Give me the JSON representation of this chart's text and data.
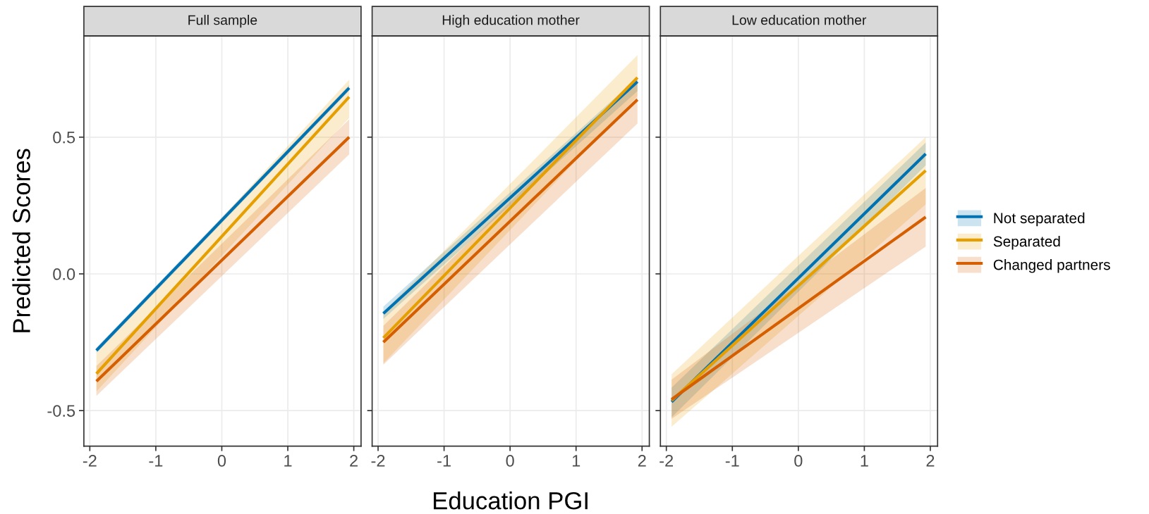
{
  "chart_data": [
    {
      "type": "line",
      "title": "Full sample",
      "ylabel": "Predicted Scores",
      "x": [
        -1.9,
        1.93
      ],
      "xlim": [
        -2.09,
        2.11
      ],
      "ylim": [
        -0.63,
        0.87
      ],
      "xticks": [
        -2,
        -1,
        0,
        1,
        2
      ],
      "yticks": [
        {
          "value": -0.5,
          "label": "-0.5"
        },
        {
          "value": 0,
          "label": "0.0"
        },
        {
          "value": 0.5,
          "label": "0.5"
        }
      ],
      "grid": true,
      "legend": "right",
      "series": [
        {
          "name": "Not separated",
          "color": "#0072b2",
          "values": [
            -0.28,
            0.68
          ],
          "lower": [
            -0.29,
            0.67
          ],
          "upper": [
            -0.27,
            0.69
          ]
        },
        {
          "name": "Separated",
          "color": "#e69f00",
          "values": [
            -0.365,
            0.647
          ],
          "lower": [
            -0.43,
            0.57
          ],
          "upper": [
            -0.29,
            0.71
          ]
        },
        {
          "name": "Changed partners",
          "color": "#d55e00",
          "values": [
            -0.393,
            0.5
          ],
          "lower": [
            -0.446,
            0.437
          ],
          "upper": [
            -0.337,
            0.565
          ]
        }
      ]
    },
    {
      "type": "line",
      "title": "High education mother",
      "xlabel": "Education PGI",
      "x": [
        -1.92,
        1.93
      ],
      "xlim": [
        -2.09,
        2.11
      ],
      "ylim": [
        -0.63,
        0.87
      ],
      "xticks": [
        -2,
        -1,
        0,
        1,
        2
      ],
      "yticks": [
        -0.5,
        0.0,
        0.5
      ],
      "grid": true,
      "tick_labels": "x",
      "series": [
        {
          "color": "#0072b2",
          "values": [
            -0.145,
            0.703
          ],
          "lower": [
            -0.165,
            0.668
          ],
          "upper": [
            -0.12,
            0.718
          ]
        },
        {
          "color": "#e69f00",
          "values": [
            -0.234,
            0.718
          ],
          "lower": [
            -0.327,
            0.65
          ],
          "upper": [
            -0.14,
            0.8
          ]
        },
        {
          "color": "#d55e00",
          "values": [
            -0.25,
            0.637
          ],
          "lower": [
            -0.332,
            0.55
          ],
          "upper": [
            -0.19,
            0.718
          ]
        }
      ]
    },
    {
      "type": "line",
      "title": "Low education mother",
      "x": [
        -1.92,
        1.93
      ],
      "xlim": [
        -2.09,
        2.11
      ],
      "ylim": [
        -0.63,
        0.87
      ],
      "xticks": [
        -2,
        -1,
        0,
        1,
        2
      ],
      "yticks": [
        -0.5,
        0.0,
        0.5
      ],
      "grid": true,
      "tick_labels": "x",
      "series": [
        {
          "color": "#0072b2",
          "values": [
            -0.468,
            0.439
          ],
          "lower": [
            -0.525,
            0.397
          ],
          "upper": [
            -0.416,
            0.48
          ]
        },
        {
          "color": "#e69f00",
          "values": [
            -0.463,
            0.378
          ],
          "lower": [
            -0.559,
            0.254
          ],
          "upper": [
            -0.367,
            0.5
          ]
        },
        {
          "color": "#d55e00",
          "values": [
            -0.459,
            0.208
          ],
          "lower": [
            -0.53,
            0.1
          ],
          "upper": [
            -0.387,
            0.314
          ]
        }
      ]
    }
  ]
}
